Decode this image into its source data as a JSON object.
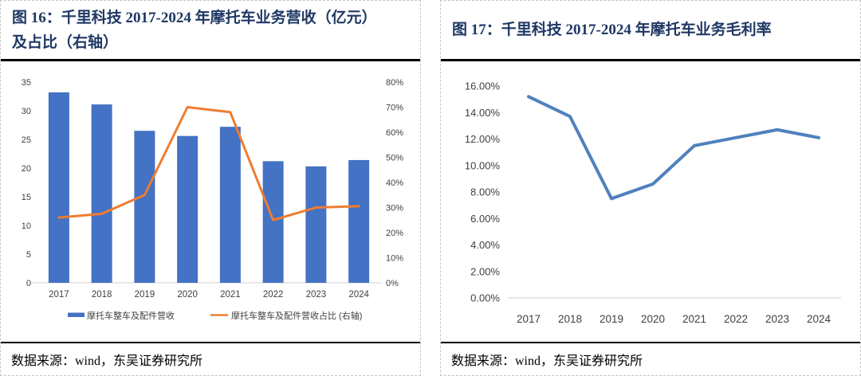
{
  "figures": [
    {
      "id": "figure-16",
      "title": "图 16：千里科技 2017-2024 年摩托车业务营收（亿元）\n及占比（右轴）",
      "source": "数据来源：wind，东吴证券研究所"
    },
    {
      "id": "figure-17",
      "title": "图 17：千里科技 2017-2024 年摩托车业务毛利率",
      "source": "数据来源：wind，东吴证券研究所"
    }
  ],
  "chart_data": [
    {
      "type": "combo-bar-line",
      "title": "千里科技 2017-2024 年摩托车业务营收（亿元）及占比（右轴）",
      "categories": [
        "2017",
        "2018",
        "2019",
        "2020",
        "2021",
        "2022",
        "2023",
        "2024"
      ],
      "series": [
        {
          "name": "摩托车整车及配件营收",
          "type": "bar",
          "axis": "left",
          "unit": "亿元",
          "color": "#4472C4",
          "values": [
            33.2,
            31.1,
            26.5,
            25.6,
            27.2,
            21.2,
            20.3,
            21.4
          ]
        },
        {
          "name": "摩托车整车及配件营收占比 (右轴)",
          "type": "line",
          "axis": "right",
          "unit": "%",
          "color": "#ED7D31",
          "values": [
            26,
            27.5,
            35,
            70,
            68,
            25,
            30,
            30.5
          ]
        }
      ],
      "left_axis": {
        "min": 0,
        "max": 35,
        "step": 5,
        "tick_suffix": ""
      },
      "right_axis": {
        "min": 0,
        "max": 80,
        "step": 10,
        "tick_suffix": "%"
      },
      "legend_position": "bottom",
      "gridlines": false
    },
    {
      "type": "line",
      "title": "千里科技 2017-2024 年摩托车业务毛利率",
      "categories": [
        "2017",
        "2018",
        "2019",
        "2020",
        "2021",
        "2022",
        "2023",
        "2024"
      ],
      "series": [
        {
          "name": "摩托车业务毛利率",
          "unit": "%",
          "color": "#4F81BD",
          "values": [
            15.2,
            13.7,
            7.5,
            8.6,
            11.5,
            12.1,
            12.7,
            12.1
          ]
        }
      ],
      "y_axis": {
        "min": 0,
        "max": 16,
        "step": 2,
        "tick_decimals": 2,
        "tick_suffix": "%"
      },
      "legend_position": "none",
      "gridlines": false
    }
  ],
  "colors": {
    "title_navy": "#1F3864",
    "axis_text": "#404040",
    "axis_line": "#D9D9D9",
    "rule_black": "#000000"
  }
}
